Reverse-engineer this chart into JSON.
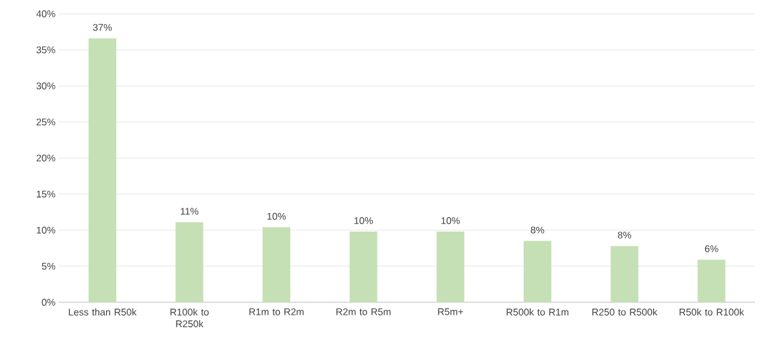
{
  "chart_data": {
    "type": "bar",
    "categories": [
      "Less than R50k",
      "R100k to R250k",
      "R1m to R2m",
      "R2m to R5m",
      "R5m+",
      "R500k to R1m",
      "R250 to R500k",
      "R50k to R100k"
    ],
    "values": [
      36.6,
      11.1,
      10.4,
      9.8,
      9.8,
      8.5,
      7.8,
      5.9
    ],
    "value_labels": [
      "37%",
      "11%",
      "10%",
      "10%",
      "10%",
      "8%",
      "8%",
      "6%"
    ],
    "color": "#c5e0b4",
    "ylim": [
      0,
      40
    ],
    "yticks": [
      {
        "value": 0,
        "label": "0%"
      },
      {
        "value": 5,
        "label": "5%"
      },
      {
        "value": 10,
        "label": "10%"
      },
      {
        "value": 15,
        "label": "15%"
      },
      {
        "value": 20,
        "label": "20%"
      },
      {
        "value": 25,
        "label": "25%"
      },
      {
        "value": 30,
        "label": "30%"
      },
      {
        "value": 35,
        "label": "35%"
      },
      {
        "value": 40,
        "label": "40%"
      }
    ],
    "grid": "y"
  }
}
